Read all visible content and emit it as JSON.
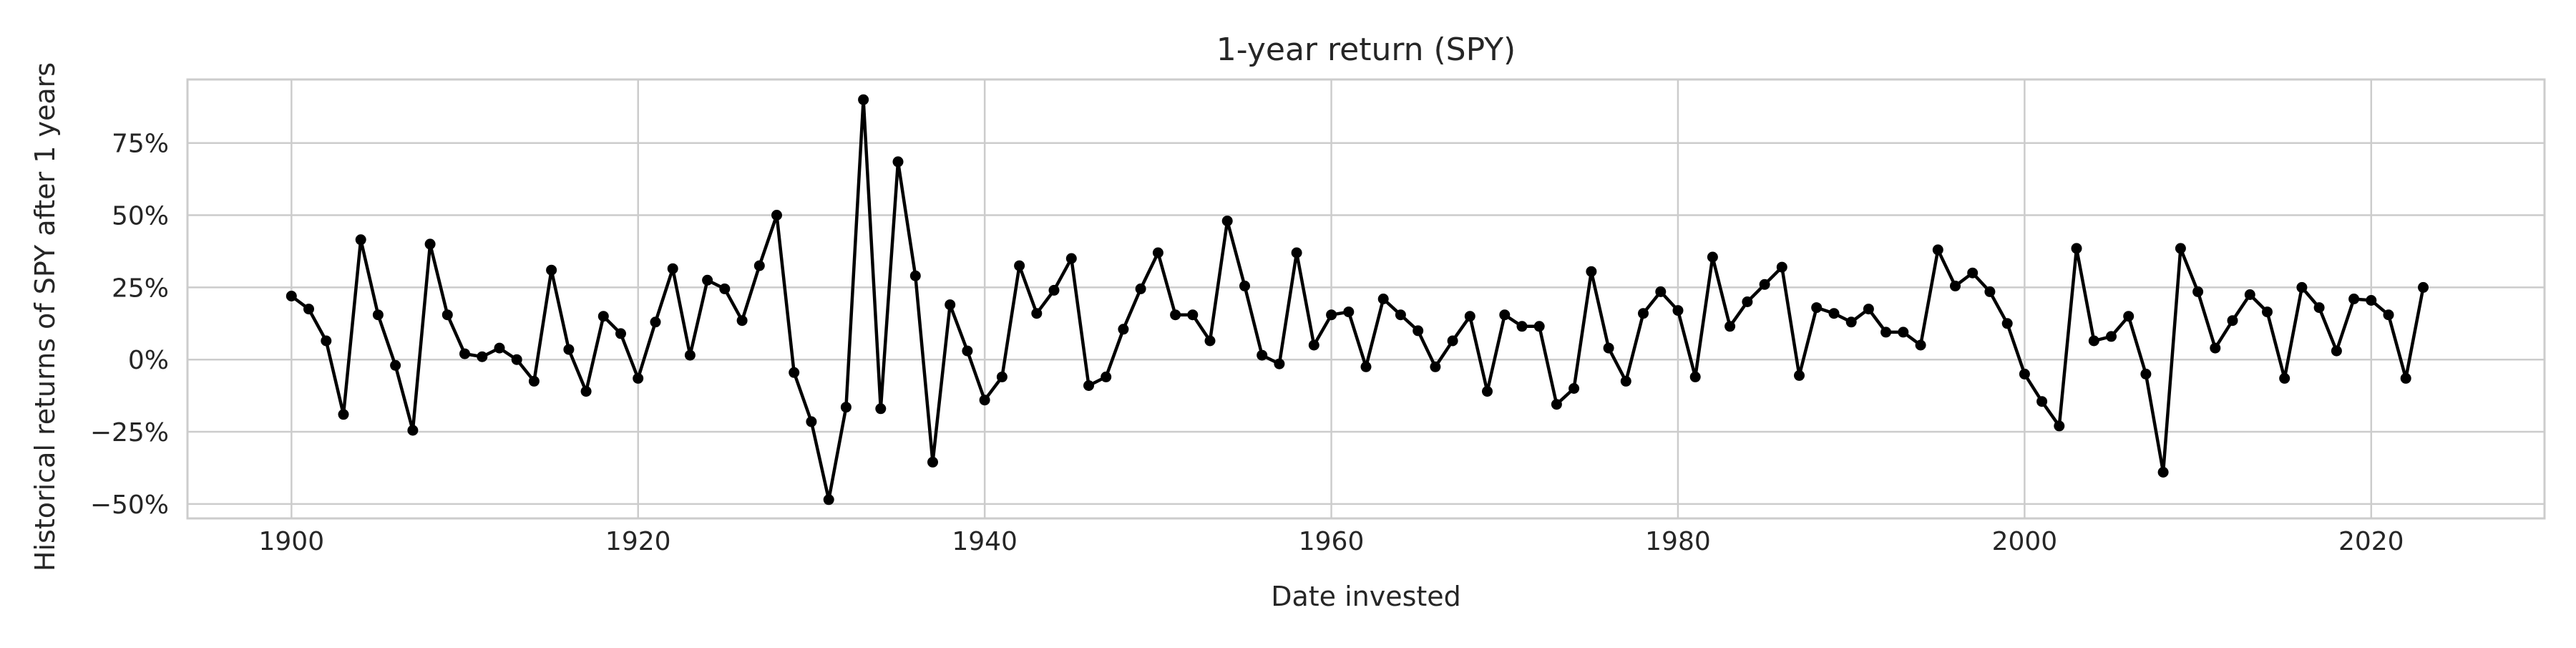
{
  "chart_data": {
    "type": "line",
    "title": "1-year return (SPY)",
    "xlabel": "Date invested",
    "ylabel": "Historical returns of SPY after 1 years",
    "xlim": [
      1894,
      2030
    ],
    "ylim": [
      -0.55,
      0.97
    ],
    "x_ticks": [
      1900,
      1920,
      1940,
      1960,
      1980,
      2000,
      2020
    ],
    "x_tick_labels": [
      "1900",
      "1920",
      "1940",
      "1960",
      "1980",
      "2000",
      "2020"
    ],
    "y_ticks": [
      -0.5,
      -0.25,
      0,
      0.25,
      0.5,
      0.75
    ],
    "y_tick_labels": [
      "−50%",
      "−25%",
      "0%",
      "25%",
      "50%",
      "75%"
    ],
    "grid": true,
    "series": [
      {
        "color": "#000000",
        "marker": "circle",
        "x": [
          1900,
          1901,
          1902,
          1903,
          1904,
          1905,
          1906,
          1907,
          1908,
          1909,
          1910,
          1911,
          1912,
          1913,
          1914,
          1915,
          1916,
          1917,
          1918,
          1919,
          1920,
          1921,
          1922,
          1923,
          1924,
          1925,
          1926,
          1927,
          1928,
          1929,
          1930,
          1931,
          1932,
          1933,
          1934,
          1935,
          1936,
          1937,
          1938,
          1939,
          1940,
          1941,
          1942,
          1943,
          1944,
          1945,
          1946,
          1947,
          1948,
          1949,
          1950,
          1951,
          1952,
          1953,
          1954,
          1955,
          1956,
          1957,
          1958,
          1959,
          1960,
          1961,
          1962,
          1963,
          1964,
          1965,
          1966,
          1967,
          1968,
          1969,
          1970,
          1971,
          1972,
          1973,
          1974,
          1975,
          1976,
          1977,
          1978,
          1979,
          1980,
          1981,
          1982,
          1983,
          1984,
          1985,
          1986,
          1987,
          1988,
          1989,
          1990,
          1991,
          1992,
          1993,
          1994,
          1995,
          1996,
          1997,
          1998,
          1999,
          2000,
          2001,
          2002,
          2003,
          2004,
          2005,
          2006,
          2007,
          2008,
          2009,
          2010,
          2011,
          2012,
          2013,
          2014,
          2015,
          2016,
          2017,
          2018,
          2019,
          2020,
          2021,
          2022,
          2023
        ],
        "values": [
          0.22,
          0.175,
          0.065,
          -0.19,
          0.415,
          0.155,
          -0.02,
          -0.245,
          0.4,
          0.155,
          0.02,
          0.01,
          0.04,
          0.0,
          -0.075,
          0.31,
          0.035,
          -0.11,
          0.15,
          0.09,
          -0.065,
          0.13,
          0.315,
          0.015,
          0.275,
          0.245,
          0.135,
          0.325,
          0.5,
          -0.045,
          -0.215,
          -0.485,
          -0.165,
          0.9,
          -0.17,
          0.685,
          0.29,
          -0.355,
          0.19,
          0.03,
          -0.14,
          -0.06,
          0.325,
          0.16,
          0.24,
          0.35,
          -0.09,
          -0.06,
          0.105,
          0.245,
          0.37,
          0.155,
          0.155,
          0.065,
          0.48,
          0.255,
          0.015,
          -0.015,
          0.37,
          0.05,
          0.155,
          0.165,
          -0.025,
          0.21,
          0.155,
          0.1,
          -0.025,
          0.065,
          0.15,
          -0.11,
          0.155,
          0.115,
          0.115,
          -0.155,
          -0.1,
          0.305,
          0.04,
          -0.075,
          0.16,
          0.235,
          0.17,
          -0.06,
          0.355,
          0.115,
          0.2,
          0.26,
          0.32,
          -0.055,
          0.18,
          0.16,
          0.13,
          0.175,
          0.095,
          0.095,
          0.05,
          0.38,
          0.255,
          0.3,
          0.235,
          0.125,
          -0.05,
          -0.145,
          -0.23,
          0.385,
          0.065,
          0.08,
          0.15,
          -0.05,
          -0.39,
          0.385,
          0.235,
          0.04,
          0.135,
          0.225,
          0.165,
          -0.065,
          0.25,
          0.18,
          0.03,
          0.21,
          0.205,
          0.155,
          -0.065,
          0.25
        ]
      }
    ]
  }
}
